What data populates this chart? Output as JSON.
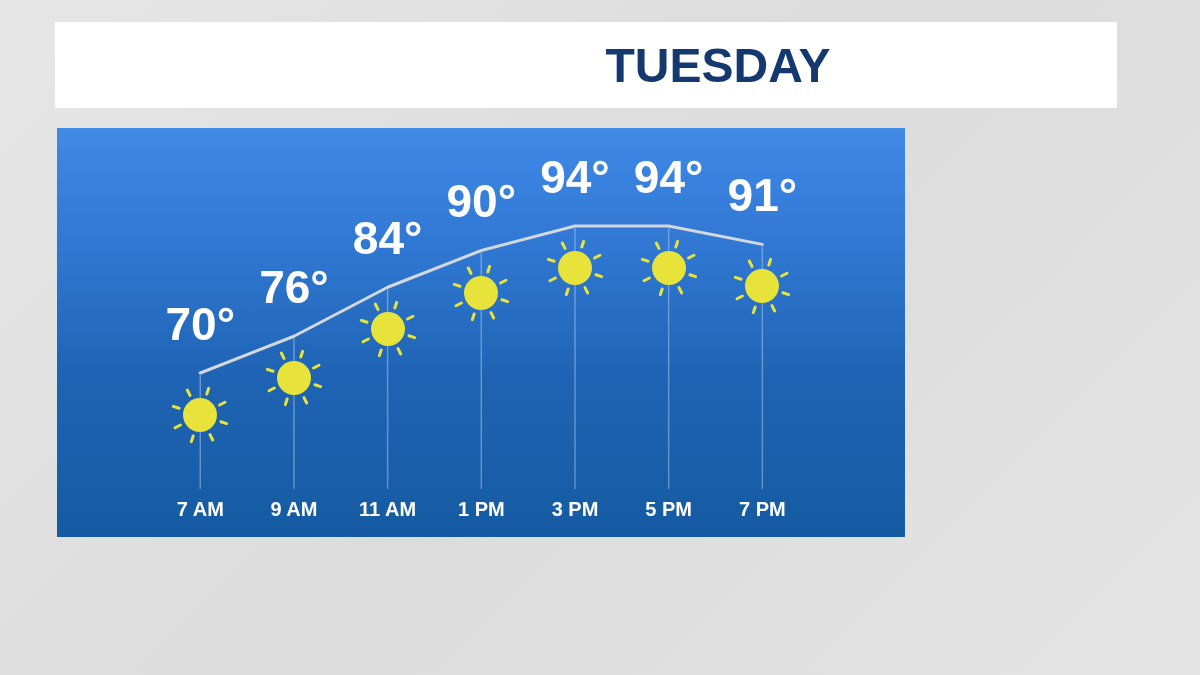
{
  "chart_data": {
    "type": "line",
    "title": "TUESDAY",
    "categories": [
      "7 AM",
      "9 AM",
      "11 AM",
      "1 PM",
      "3 PM",
      "5 PM",
      "7 PM"
    ],
    "values": [
      70,
      76,
      84,
      90,
      94,
      94,
      91
    ],
    "value_labels": [
      "70°",
      "76°",
      "84°",
      "90°",
      "94°",
      "94°",
      "91°"
    ],
    "color": "#d3d7de",
    "grid": "x",
    "marker": "none",
    "tick_labels": "x"
  }
}
